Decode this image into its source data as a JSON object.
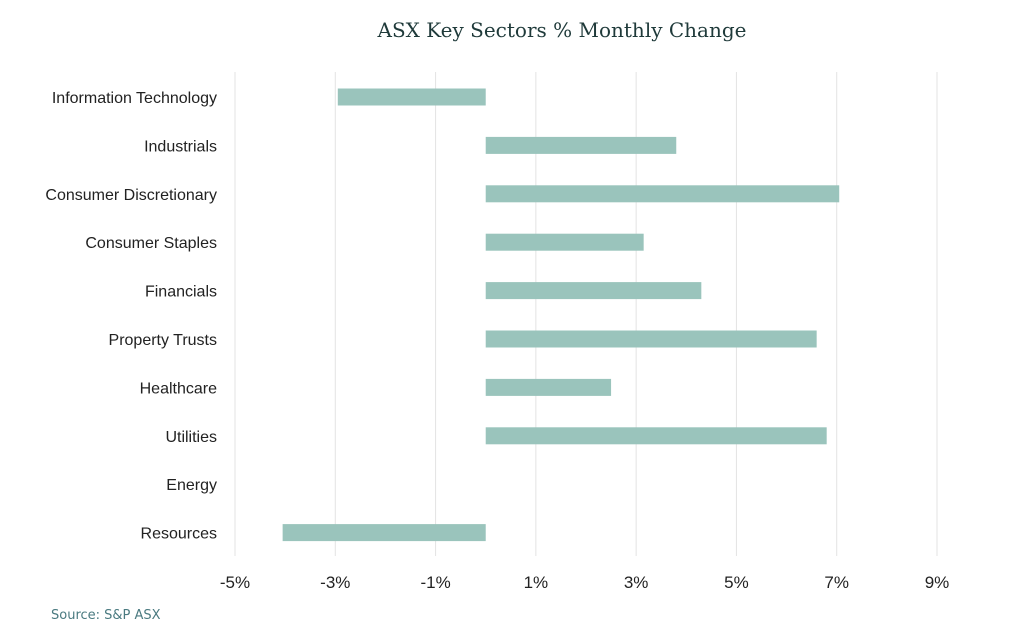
{
  "chart_data": {
    "type": "bar",
    "orientation": "horizontal",
    "title": "ASX Key Sectors % Monthly Change",
    "categories": [
      "Information Technology",
      "Industrials",
      "Consumer Discretionary",
      "Consumer Staples",
      "Financials",
      "Property Trusts",
      "Healthcare",
      "Utilities",
      "Energy",
      "Resources"
    ],
    "values": [
      -2.95,
      3.8,
      7.05,
      3.15,
      4.3,
      6.6,
      2.5,
      6.8,
      0.0,
      -4.05
    ],
    "xlim": [
      -5,
      9
    ],
    "xticks": [
      -5,
      -3,
      -1,
      1,
      3,
      5,
      7,
      9
    ],
    "tick_suffix": "%",
    "grid": true,
    "legend": "none",
    "bar_color": "#9ac4bc"
  },
  "source_label": "Source: S&P ASX"
}
